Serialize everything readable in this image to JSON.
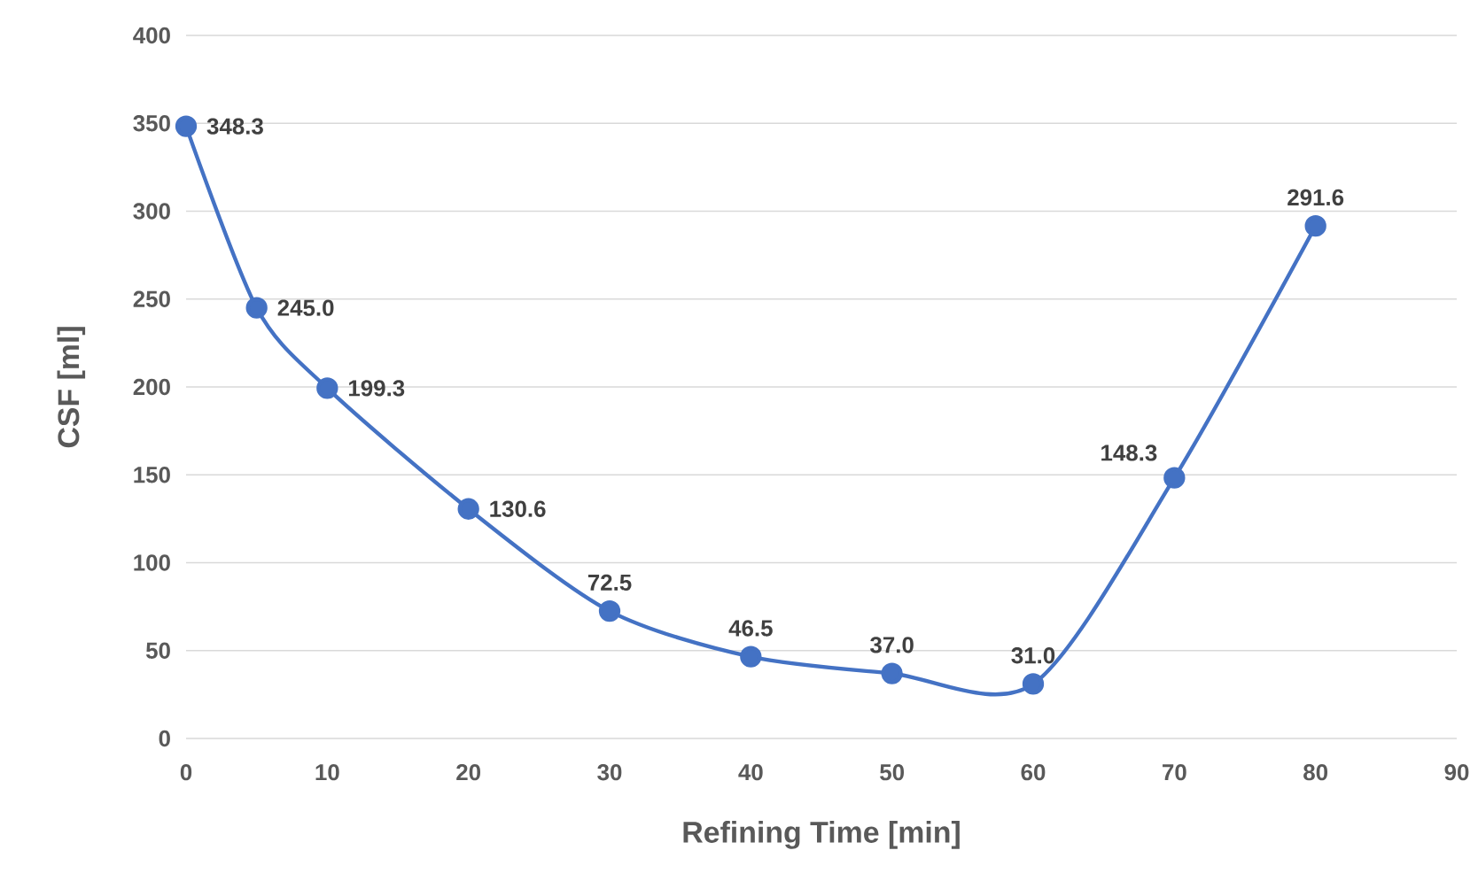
{
  "chart_data": {
    "type": "line",
    "xlabel": "Refining Time [min]",
    "ylabel": "CSF [ml]",
    "x": [
      0,
      5,
      10,
      20,
      30,
      40,
      50,
      60,
      70,
      80
    ],
    "values": [
      348.3,
      245.0,
      199.3,
      130.6,
      72.5,
      46.5,
      37.0,
      31.0,
      148.3,
      291.6
    ],
    "value_labels": [
      "348.3",
      "245.0",
      "199.3",
      "130.6",
      "72.5",
      "46.5",
      "37.0",
      "31.0",
      "148.3",
      "291.6"
    ],
    "color": "#4472c4",
    "marker": "circle",
    "line_style": "solid",
    "grid": "y",
    "xlim": [
      0,
      90
    ],
    "xticks": [
      0,
      10,
      20,
      30,
      40,
      50,
      60,
      70,
      80,
      90
    ],
    "ylim": [
      0,
      400
    ],
    "yticks": [
      0,
      50,
      100,
      150,
      200,
      250,
      300,
      350,
      400
    ]
  }
}
